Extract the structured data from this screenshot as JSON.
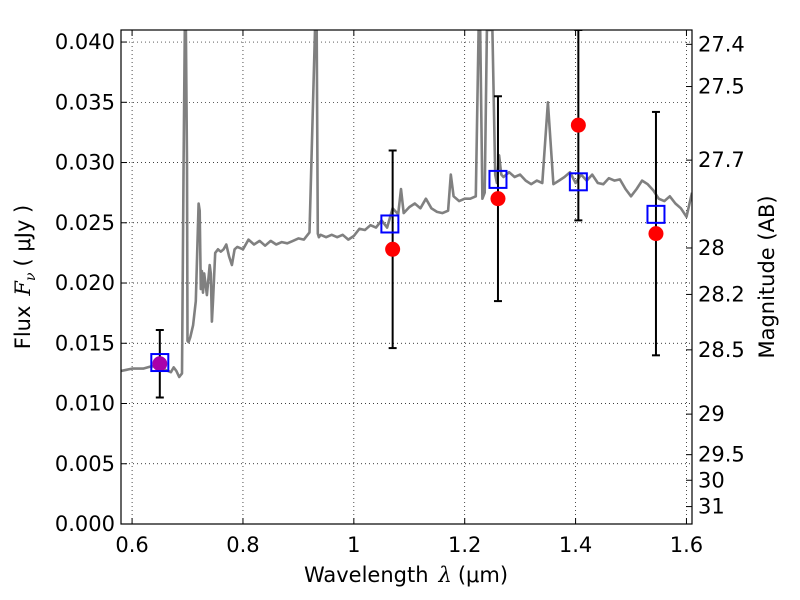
{
  "chart_data": {
    "type": "scatter",
    "xlabel_text": "Wavelength",
    "xlabel_symbol": "λ",
    "xlabel_unit": "(μm)",
    "ylabel_text": "Flux",
    "ylabel_symbol": "F",
    "ylabel_subscript": "ν",
    "ylabel_unit": "( μJy )",
    "y2label": "Magnitude (AB)",
    "xlim": [
      0.58,
      1.61
    ],
    "ylim": [
      0.0,
      0.041
    ],
    "grid": true,
    "x_ticks": [
      0.6,
      0.8,
      1.0,
      1.2,
      1.4,
      1.6
    ],
    "x_tick_labels": [
      "0.6",
      "0.8",
      "1",
      "1.2",
      "1.4",
      "1.6"
    ],
    "y_ticks": [
      0.0,
      0.005,
      0.01,
      0.015,
      0.02,
      0.025,
      0.03,
      0.035,
      0.04
    ],
    "y_tick_labels": [
      "0.000",
      "0.005",
      "0.010",
      "0.015",
      "0.020",
      "0.025",
      "0.030",
      "0.035",
      "0.040"
    ],
    "mag_ticks": [
      27.4,
      27.5,
      27.7,
      28,
      28.2,
      28.5,
      29,
      29.5,
      30,
      31
    ],
    "mag_tick_labels": [
      "27.4",
      "27.5",
      "27.7",
      "28",
      "28.2",
      "28.5",
      "29",
      "29.5",
      "30",
      "31"
    ],
    "series": [
      {
        "kind": "line",
        "color": "#808080",
        "x": [
          0.58,
          0.6,
          0.62,
          0.635,
          0.65,
          0.66,
          0.67,
          0.675,
          0.68,
          0.685,
          0.69,
          0.693,
          0.695,
          0.697,
          0.699,
          0.7,
          0.702,
          0.705,
          0.71,
          0.715,
          0.72,
          0.722,
          0.724,
          0.726,
          0.728,
          0.73,
          0.735,
          0.74,
          0.742,
          0.744,
          0.746,
          0.75,
          0.755,
          0.76,
          0.765,
          0.77,
          0.775,
          0.78,
          0.785,
          0.79,
          0.8,
          0.81,
          0.82,
          0.83,
          0.835,
          0.84,
          0.85,
          0.86,
          0.87,
          0.88,
          0.89,
          0.9,
          0.91,
          0.92,
          0.93,
          0.933,
          0.935,
          0.937,
          0.94,
          0.95,
          0.96,
          0.97,
          0.98,
          0.99,
          1.0,
          1.01,
          1.02,
          1.03,
          1.04,
          1.05,
          1.06,
          1.07,
          1.08,
          1.085,
          1.09,
          1.1,
          1.11,
          1.12,
          1.13,
          1.14,
          1.15,
          1.16,
          1.17,
          1.175,
          1.18,
          1.19,
          1.2,
          1.21,
          1.22,
          1.225,
          1.228,
          1.232,
          1.236,
          1.24,
          1.25,
          1.255,
          1.258,
          1.262,
          1.266,
          1.27,
          1.28,
          1.29,
          1.3,
          1.31,
          1.32,
          1.33,
          1.34,
          1.35,
          1.36,
          1.37,
          1.38,
          1.39,
          1.4,
          1.41,
          1.42,
          1.43,
          1.44,
          1.45,
          1.46,
          1.47,
          1.48,
          1.49,
          1.5,
          1.51,
          1.52,
          1.53,
          1.54,
          1.55,
          1.56,
          1.57,
          1.58,
          1.59,
          1.6,
          1.61
        ],
        "y": [
          0.0127,
          0.0129,
          0.0129,
          0.0131,
          0.013,
          0.0128,
          0.0126,
          0.013,
          0.0127,
          0.0122,
          0.0125,
          0.03,
          0.041,
          0.041,
          0.03,
          0.0152,
          0.0151,
          0.0155,
          0.0165,
          0.0185,
          0.0266,
          0.026,
          0.0195,
          0.021,
          0.0192,
          0.0208,
          0.019,
          0.0215,
          0.0208,
          0.0168,
          0.0185,
          0.0225,
          0.0228,
          0.0226,
          0.0228,
          0.0232,
          0.0222,
          0.0215,
          0.0228,
          0.023,
          0.0228,
          0.0236,
          0.0232,
          0.0235,
          0.0233,
          0.0231,
          0.0235,
          0.0232,
          0.0234,
          0.0233,
          0.0235,
          0.0237,
          0.0236,
          0.0242,
          0.041,
          0.041,
          0.0241,
          0.0238,
          0.024,
          0.0238,
          0.024,
          0.0238,
          0.024,
          0.0236,
          0.0239,
          0.0245,
          0.0244,
          0.0248,
          0.0246,
          0.0252,
          0.0246,
          0.0262,
          0.0257,
          0.0278,
          0.0258,
          0.0263,
          0.0266,
          0.0262,
          0.027,
          0.0262,
          0.0259,
          0.0258,
          0.026,
          0.029,
          0.0272,
          0.0268,
          0.027,
          0.027,
          0.0272,
          0.041,
          0.041,
          0.027,
          0.0275,
          0.041,
          0.041,
          0.029,
          0.0283,
          0.0306,
          0.029,
          0.0288,
          0.0292,
          0.0288,
          0.029,
          0.0285,
          0.0282,
          0.0285,
          0.0283,
          0.035,
          0.0282,
          0.0285,
          0.0288,
          0.0292,
          0.0283,
          0.029,
          0.0285,
          0.029,
          0.0283,
          0.0282,
          0.0287,
          0.0285,
          0.0286,
          0.0278,
          0.0272,
          0.0278,
          0.0285,
          0.0282,
          0.0277,
          0.027,
          0.0268,
          0.0272,
          0.0266,
          0.0262,
          0.0255,
          0.0275
        ]
      },
      {
        "kind": "points",
        "marker": "circle",
        "color": "#ff0000",
        "x": [
          0.65,
          1.07,
          1.26,
          1.405,
          1.545
        ],
        "y": [
          0.0133,
          0.0228,
          0.027,
          0.0331,
          0.0241
        ],
        "yerr": [
          0.0028,
          0.0082,
          0.0085,
          0.0079,
          0.0101
        ]
      },
      {
        "kind": "points",
        "marker": "open-square",
        "color": "#0000ff",
        "x": [
          0.65,
          1.065,
          1.26,
          1.405,
          1.545
        ],
        "y": [
          0.0134,
          0.0249,
          0.0286,
          0.0284,
          0.0257
        ]
      }
    ],
    "colors": {
      "background": "#ffffff",
      "grid": "#000000",
      "axes": "#000000",
      "errorbar": "#000000",
      "overlap_point": "#aa00aa"
    }
  }
}
